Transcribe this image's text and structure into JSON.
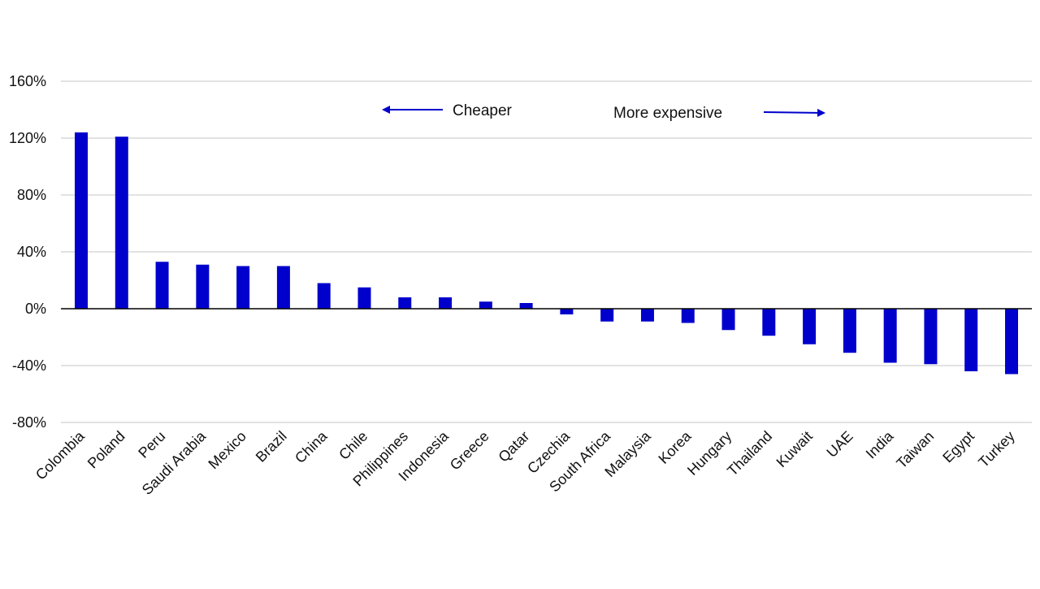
{
  "chart_data": {
    "type": "bar",
    "title": "",
    "xlabel": "",
    "ylabel": "",
    "ylim": [
      -80,
      160
    ],
    "yticks": [
      160,
      120,
      80,
      40,
      0,
      -40,
      -80
    ],
    "ytick_labels": [
      "160%",
      "120%",
      "80%",
      "40%",
      "0%",
      "-40%",
      "-80%"
    ],
    "grid": true,
    "bar_color": "#0000cc",
    "categories": [
      "Colombia",
      "Poland",
      "Peru",
      "Saudi Arabia",
      "Mexico",
      "Brazil",
      "China",
      "Chile",
      "Philippines",
      "Indonesia",
      "Greece",
      "Qatar",
      "Czechia",
      "South Africa",
      "Malaysia",
      "Korea",
      "Hungary",
      "Thailand",
      "Kuwait",
      "UAE",
      "India",
      "Taiwan",
      "Egypt",
      "Turkey"
    ],
    "values": [
      124,
      121,
      33,
      31,
      30,
      30,
      18,
      15,
      8,
      8,
      5,
      4,
      -4,
      -9,
      -9,
      -10,
      -15,
      -19,
      -25,
      -31,
      -38,
      -39,
      -44,
      -46
    ],
    "annotations": [
      {
        "text": "Cheaper",
        "arrow": "left"
      },
      {
        "text": "More expensive",
        "arrow": "right"
      }
    ]
  }
}
